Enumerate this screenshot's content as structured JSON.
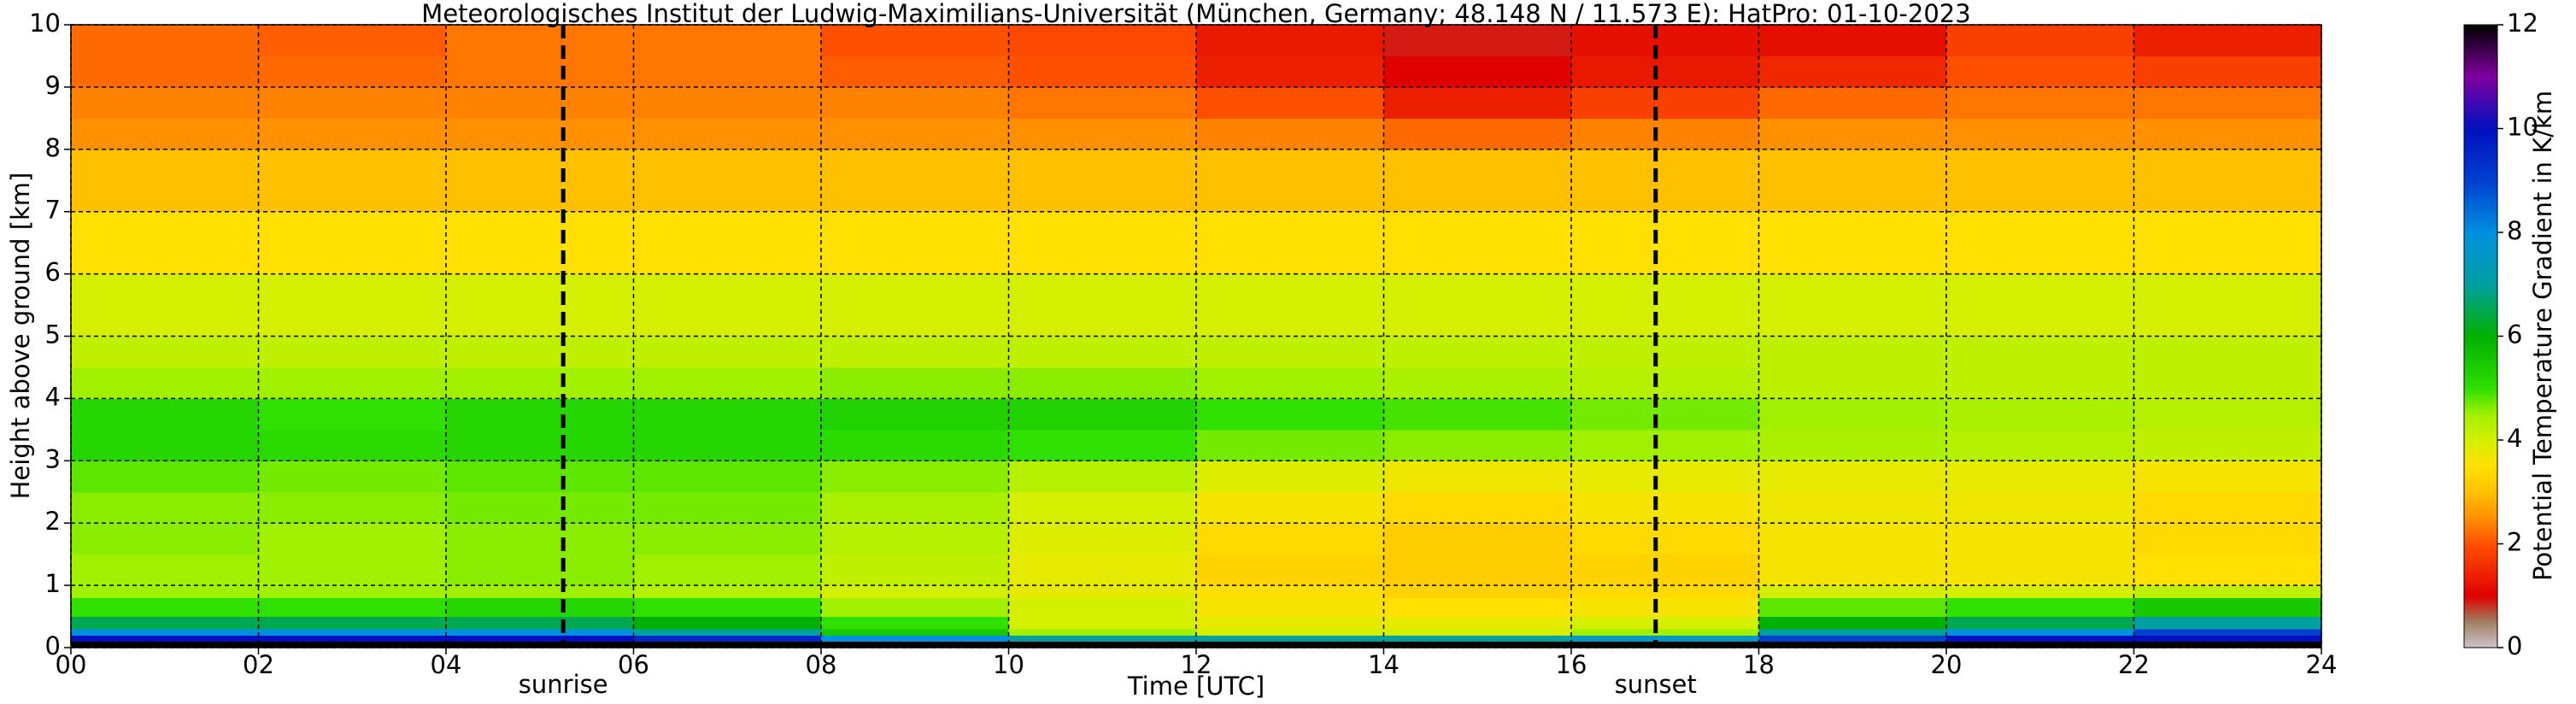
{
  "chart_data": {
    "type": "heatmap",
    "title": "Meteorologisches Institut der Ludwig-Maximilians-Universität (München, Germany; 48.148 N / 11.573 E):    HatPro: 01-10-2023",
    "xlabel": "Time [UTC]",
    "ylabel": "Height above ground [km]",
    "colorbar_label": "Potential Temperature Gradient in K/km",
    "x_edges": [
      0,
      2,
      4,
      6,
      8,
      10,
      12,
      14,
      16,
      18,
      20,
      22,
      24
    ],
    "y_edges": [
      0,
      0.1,
      0.2,
      0.3,
      0.5,
      0.8,
      1,
      1.5,
      2,
      2.5,
      3,
      3.5,
      4,
      4.5,
      5,
      6,
      7,
      8,
      8.5,
      9,
      9.5,
      10
    ],
    "z": [
      [
        12,
        12,
        12,
        12,
        12,
        12,
        12,
        12,
        12,
        12,
        12,
        12
      ],
      [
        10,
        10,
        10,
        9.5,
        8,
        7,
        7,
        7,
        7.5,
        9,
        10,
        10
      ],
      [
        8,
        8,
        8,
        7,
        5.5,
        4.5,
        4,
        4,
        4.5,
        7,
        8,
        9
      ],
      [
        6.5,
        6.5,
        6.5,
        6,
        5,
        4,
        3.8,
        3.8,
        4,
        6,
        6.5,
        7
      ],
      [
        5,
        5,
        5.2,
        5,
        4.5,
        4,
        3.6,
        3.5,
        3.6,
        4.8,
        5,
        5.5
      ],
      [
        4.5,
        4.5,
        4.5,
        4.3,
        4,
        3.8,
        3.5,
        3.3,
        3.4,
        4,
        4,
        4.2
      ],
      [
        4.5,
        4.5,
        4.6,
        4.5,
        4.2,
        3.8,
        3.3,
        3.2,
        3.3,
        3.6,
        3.6,
        3.5
      ],
      [
        4.6,
        4.5,
        4.6,
        4.6,
        4.3,
        3.9,
        3.4,
        3.2,
        3.4,
        3.6,
        3.6,
        3.4
      ],
      [
        4.6,
        4.6,
        4.7,
        4.7,
        4.4,
        4,
        3.6,
        3.4,
        3.6,
        3.7,
        3.7,
        3.4
      ],
      [
        4.8,
        4.7,
        4.8,
        4.8,
        4.6,
        4.3,
        3.9,
        3.7,
        3.8,
        3.8,
        3.8,
        3.6
      ],
      [
        5.2,
        5.1,
        5.2,
        5.2,
        5.1,
        5,
        4.7,
        4.6,
        4.5,
        4.4,
        4.3,
        4.2
      ],
      [
        5.2,
        5,
        5.2,
        5.2,
        5.3,
        5.3,
        5,
        4.9,
        4.7,
        4.5,
        4.4,
        4.3
      ],
      [
        4.5,
        4.5,
        4.5,
        4.5,
        4.6,
        4.6,
        4.5,
        4.4,
        4.3,
        4.2,
        4.2,
        4.2
      ],
      [
        4.2,
        4.2,
        4.2,
        4.2,
        4.2,
        4.2,
        4.2,
        4.2,
        4.2,
        4.2,
        4.2,
        4.2
      ],
      [
        4,
        4,
        4,
        4,
        4,
        4,
        4,
        4,
        4,
        4,
        4,
        4
      ],
      [
        3.5,
        3.5,
        3.5,
        3.5,
        3.5,
        3.5,
        3.5,
        3.5,
        3.5,
        3.5,
        3.5,
        3.5
      ],
      [
        3,
        3,
        3,
        3,
        3,
        3,
        3,
        3,
        3,
        3,
        3,
        3
      ],
      [
        2.5,
        2.5,
        2.5,
        2.5,
        2.5,
        2.5,
        2.4,
        2.2,
        2.4,
        2.5,
        2.5,
        2.5
      ],
      [
        2.4,
        2.4,
        2.4,
        2.4,
        2.4,
        2.3,
        2,
        1.4,
        1.8,
        2.2,
        2.3,
        2.3
      ],
      [
        2.2,
        2.2,
        2.3,
        2.3,
        2.1,
        2,
        1.4,
        1,
        1.3,
        1.5,
        2,
        1.8
      ],
      [
        2.2,
        2.1,
        2.3,
        2.3,
        2,
        1.9,
        1.3,
        0.9,
        1.2,
        1.2,
        1.8,
        1.4
      ]
    ],
    "colorscale": [
      [
        0,
        "#d0c4cc"
      ],
      [
        0.5,
        "#a08060"
      ],
      [
        1,
        "#e00000"
      ],
      [
        2,
        "#ff5000"
      ],
      [
        2.5,
        "#ff9000"
      ],
      [
        3,
        "#ffc000"
      ],
      [
        3.5,
        "#ffe000"
      ],
      [
        4,
        "#d4f000"
      ],
      [
        4.5,
        "#a0f000"
      ],
      [
        5,
        "#30e000"
      ],
      [
        6,
        "#00b000"
      ],
      [
        7,
        "#00a0a0"
      ],
      [
        8,
        "#0090e0"
      ],
      [
        9,
        "#0040d0"
      ],
      [
        10,
        "#0010c0"
      ],
      [
        11,
        "#8000a0"
      ],
      [
        12,
        "#000000"
      ]
    ],
    "xlim": [
      0,
      24
    ],
    "ylim": [
      0,
      10
    ],
    "clim": [
      0,
      12
    ],
    "xticks": [
      {
        "value": 0,
        "label": "00"
      },
      {
        "value": 2,
        "label": "02"
      },
      {
        "value": 4,
        "label": "04"
      },
      {
        "value": 6,
        "label": "06"
      },
      {
        "value": 8,
        "label": "08"
      },
      {
        "value": 10,
        "label": "10"
      },
      {
        "value": 12,
        "label": "12"
      },
      {
        "value": 14,
        "label": "14"
      },
      {
        "value": 16,
        "label": "16"
      },
      {
        "value": 18,
        "label": "18"
      },
      {
        "value": 20,
        "label": "20"
      },
      {
        "value": 22,
        "label": "22"
      },
      {
        "value": 24,
        "label": "24"
      }
    ],
    "yticks": [
      0,
      1,
      2,
      3,
      4,
      5,
      6,
      7,
      8,
      9,
      10
    ],
    "cticks": [
      0,
      2,
      4,
      6,
      8,
      10,
      12
    ],
    "grid": true,
    "events": [
      {
        "label": "sunrise",
        "x": 5.25
      },
      {
        "label": "sunset",
        "x": 16.9
      }
    ]
  }
}
